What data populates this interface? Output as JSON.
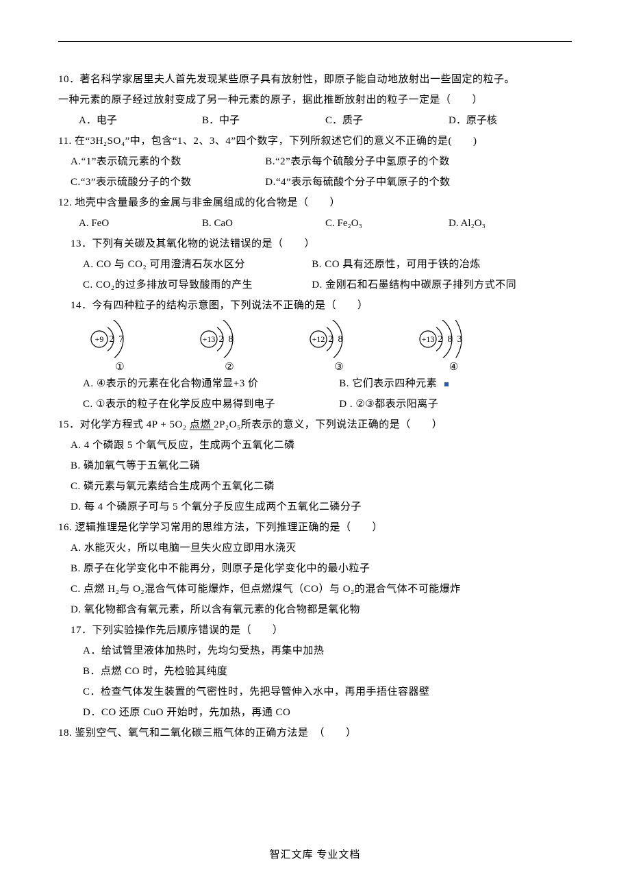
{
  "colors": {
    "text": "#000000",
    "bg": "#ffffff",
    "rule": "#000000",
    "note_dot": "#2a5ca8",
    "stroke": "#000000"
  },
  "typography": {
    "body_pt": 15,
    "sub_pt": 11,
    "line_height": 2.0,
    "font_family": "SimSun"
  },
  "q10": {
    "stem1": "10．著名科学家居里夫人首先发现某些原子具有放射性，即原子能自动地放射出一些固定的粒子。",
    "stem2": "一种元素的原子经过放射变成了另一种元素的原子，据此推断放射出的粒子一定是（　　）",
    "A": "A．电子",
    "B": "B．中子",
    "C": "C．质子",
    "D": "D．原子核"
  },
  "q11": {
    "stem": "11. 在“3H₂SO₄”中，包含“1、2、3、4”四个数字，下列所叙述它们的意义不正确的是(　　)",
    "A": "A.“1”表示硫元素的个数",
    "B": "B.“2”表示每个硫酸分子中氢原子的个数",
    "C": "C.“3”表示硫酸分子的个数",
    "D": "D.“4”表示每硫酸个分子中氧原子的个数"
  },
  "q12": {
    "stem": "12. 地壳中含量最多的金属与非金属组成的化合物是（　　）",
    "A": "A. FeO",
    "B": "B. CaO",
    "C": "C. Fe₂O₃",
    "D": "D. Al₂O₃"
  },
  "q13": {
    "stem": "13．下列有关碳及其氧化物的说法错误的是（　　）",
    "A": "A. CO 与 CO₂ 可用澄清石灰水区分",
    "B": "B. CO 具有还原性，可用于铁的冶炼",
    "C": "C. CO₂的过多排放可导致酸雨的产生",
    "D": "D. 金刚石和石墨结构中碳原子排列方式不同"
  },
  "q14": {
    "stem": "14．今有四种粒子的结构示意图，下列说法不正确的是（　　）",
    "diagrams": {
      "type": "atomic-structure",
      "stroke": "#000000",
      "stroke_width": 1.2,
      "font_size": 14,
      "label_font_size": 15,
      "items": [
        {
          "label": "①",
          "nucleus": "+9",
          "shells": [
            2,
            7
          ]
        },
        {
          "label": "②",
          "nucleus": "+13",
          "shells": [
            2,
            8
          ]
        },
        {
          "label": "③",
          "nucleus": "+12",
          "shells": [
            2,
            8
          ]
        },
        {
          "label": "④",
          "nucleus": "+13",
          "shells": [
            2,
            8,
            3
          ]
        }
      ]
    },
    "A": "A. ④表示的元素在化合物通常显+3 价",
    "B": "B. 它们表示四种元素",
    "C": "C. ①表示的粒子在化学反应中易得到电子",
    "D": "D . ②③都表示阳离子"
  },
  "q15": {
    "stem_pre": "15．对化学方程式 4P + 5O₂ ",
    "condition": " 点燃 ",
    "stem_post": " 2P₂O₅所表示的意义，下列说法正确的是（　　）",
    "A": "A. 4 个磷跟 5 个氧气反应，生成两个五氧化二磷",
    "B": "B. 磷加氧气等于五氧化二磷",
    "C": "C. 磷元素与氧元素结合生成两个五氧化二磷",
    "D": "D. 每 4 个磷原子可与 5 个氧分子反应生成两个五氧化二磷分子"
  },
  "q16": {
    "stem": "16. 逻辑推理是化学学习常用的思维方法，下列推理正确的是（　　）",
    "A": "A. 水能灭火，所以电脑一旦失火应立即用水浇灭",
    "B": "B. 原子在化学变化中不能再分，则原子是化学变化中的最小粒子",
    "C": "C. 点燃 H₂与 O₂混合气体可能爆炸，但点燃煤气（CO）与 O₂的混合气体不可能爆炸",
    "D": "D. 氧化物都含有氧元素，所以含有氧元素的化合物都是氧化物"
  },
  "q17": {
    "stem": "17．下列实验操作先后顺序错误的是（　　）",
    "A": "A．给试管里液体加热时，先均匀受热，再集中加热",
    "B": "B．点燃 CO 时，先检验其纯度",
    "C": "C．检查气体发生装置的气密性时，先把导管伸入水中，再用手捂住容器壁",
    "D": "D．CO 还原 CuO 开始时，先加热，再通 CO"
  },
  "q18": {
    "stem": "18. 鉴别空气、氧气和二氧化碳三瓶气体的正确方法是　（　　）"
  },
  "footer": "智汇文库 专业文档"
}
